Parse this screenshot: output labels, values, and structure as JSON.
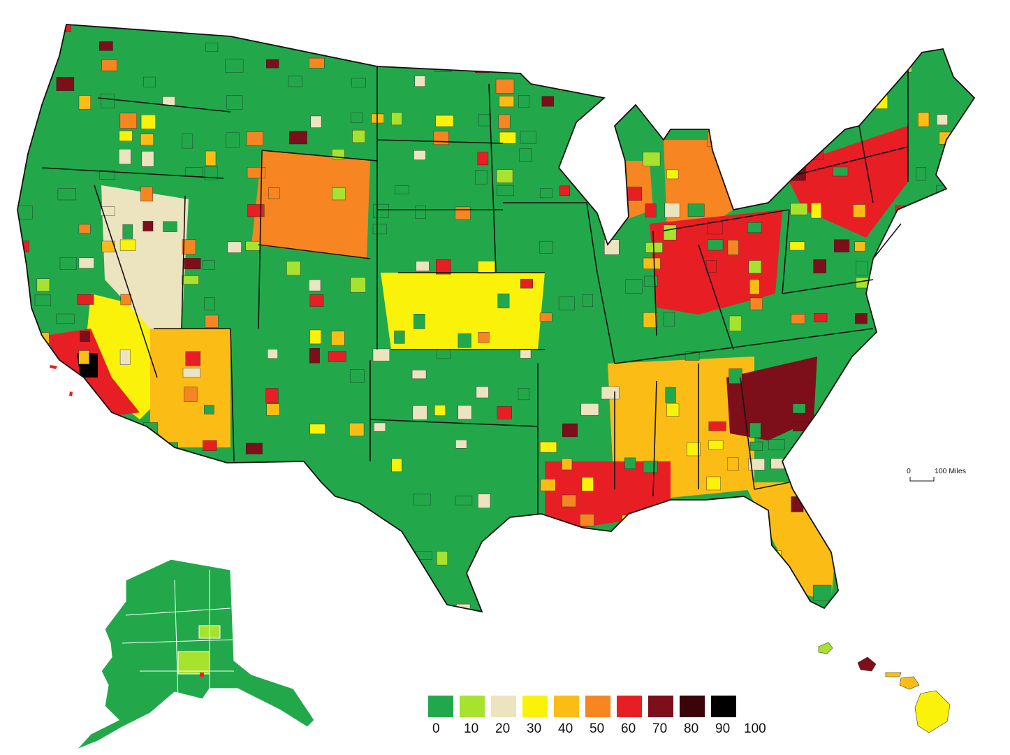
{
  "palette": {
    "bin_0_10": "#22a84a",
    "bin_10_20": "#a6e22e",
    "bin_20_30": "#ece3bf",
    "bin_30_40": "#fbf20a",
    "bin_40_50": "#fbbd15",
    "bin_50_60": "#f78522",
    "bin_60_70": "#e81e25",
    "bin_70_80": "#7c0f1a",
    "bin_80_90": "#3a0409",
    "bin_90_100": "#000000",
    "border": "#111111",
    "alaska_border": "#ffffff"
  },
  "legend": {
    "swatches": [
      "bin_0_10",
      "bin_10_20",
      "bin_20_30",
      "bin_30_40",
      "bin_40_50",
      "bin_50_60",
      "bin_60_70",
      "bin_70_80",
      "bin_80_90",
      "bin_90_100"
    ],
    "ticks": [
      "0",
      "10",
      "20",
      "30",
      "40",
      "50",
      "60",
      "70",
      "80",
      "90",
      "100"
    ]
  },
  "scale_bar": {
    "zero": "0",
    "distance": "100 Miles"
  },
  "regions": {
    "pacific_northwest": "bin_0_10",
    "california_north": "bin_0_10",
    "california_central": "bin_30_40",
    "california_south": "bin_60_70",
    "los_angeles": "bin_90_100",
    "nevada": "bin_20_30",
    "arizona": "bin_40_50",
    "utah": "bin_0_10",
    "idaho_montana": "bin_0_10",
    "wyoming": "bin_50_60",
    "colorado": "bin_0_10",
    "new_mexico": "bin_0_10",
    "dakotas": "bin_0_10",
    "nebraska_kansas": "bin_30_40",
    "oklahoma": "bin_0_10",
    "texas": "bin_0_10",
    "upper_midwest": "bin_0_10",
    "great_lakes": "bin_50_60",
    "michigan": "bin_50_60",
    "ohio_valley": "bin_60_70",
    "appalachia": "bin_0_10",
    "southeast": "bin_40_50",
    "georgia_carolina": "bin_70_80",
    "gulf_coast": "bin_60_70",
    "florida": "bin_40_50",
    "northeast": "bin_60_70",
    "new_england": "bin_0_10",
    "alaska": "bin_0_10",
    "hawaii": "bin_30_40"
  }
}
